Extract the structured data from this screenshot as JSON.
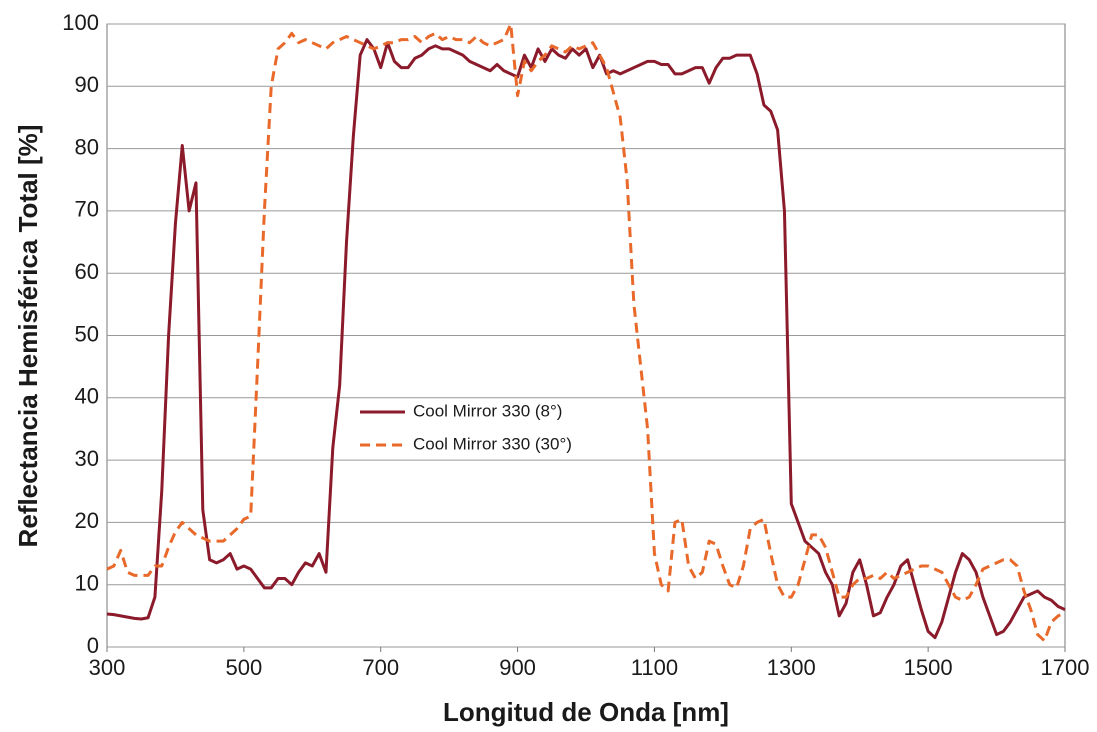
{
  "chart_data": {
    "type": "line",
    "xlabel": "Longitud de Onda [nm]",
    "ylabel": "Reflectancia Hemisférica Total [%]",
    "x": [
      300,
      310,
      320,
      330,
      340,
      350,
      360,
      370,
      380,
      390,
      400,
      410,
      420,
      430,
      440,
      450,
      460,
      470,
      480,
      490,
      500,
      510,
      520,
      530,
      540,
      550,
      560,
      570,
      580,
      590,
      600,
      610,
      620,
      630,
      640,
      650,
      660,
      670,
      680,
      690,
      700,
      710,
      720,
      730,
      740,
      750,
      760,
      770,
      780,
      790,
      800,
      810,
      820,
      830,
      840,
      850,
      860,
      870,
      880,
      890,
      900,
      910,
      920,
      930,
      940,
      950,
      960,
      970,
      980,
      990,
      1000,
      1010,
      1020,
      1030,
      1040,
      1050,
      1060,
      1070,
      1080,
      1090,
      1100,
      1110,
      1120,
      1130,
      1140,
      1150,
      1160,
      1170,
      1180,
      1190,
      1200,
      1210,
      1220,
      1230,
      1240,
      1250,
      1260,
      1270,
      1280,
      1290,
      1300,
      1310,
      1320,
      1330,
      1340,
      1350,
      1360,
      1370,
      1380,
      1390,
      1400,
      1410,
      1420,
      1430,
      1440,
      1450,
      1460,
      1470,
      1480,
      1490,
      1500,
      1510,
      1520,
      1530,
      1540,
      1550,
      1560,
      1570,
      1580,
      1590,
      1600,
      1610,
      1620,
      1630,
      1640,
      1650,
      1660,
      1670,
      1680,
      1690,
      1700
    ],
    "series": [
      {
        "name": "Cool Mirror 330 (8°)",
        "color": "#8b1a2b",
        "dash": false,
        "values": [
          5.3,
          5.2,
          5.0,
          4.8,
          4.6,
          4.5,
          4.7,
          8,
          25,
          50,
          68,
          80.5,
          70,
          74.5,
          22,
          14,
          13.5,
          14,
          15,
          12.5,
          13,
          12.5,
          11,
          9.5,
          9.5,
          11,
          11,
          10,
          12,
          13.5,
          13,
          15,
          12,
          32,
          42,
          65,
          82,
          95,
          97.5,
          96,
          93,
          97,
          94,
          93,
          93,
          94.5,
          95,
          96,
          96.5,
          96,
          96,
          95.5,
          95,
          94,
          93.5,
          93,
          92.5,
          93.5,
          92.5,
          92,
          91.5,
          95,
          93,
          96,
          94,
          96,
          95,
          94.5,
          96,
          95,
          96,
          93,
          95,
          92,
          92.5,
          92,
          92.5,
          93,
          93.5,
          94,
          94,
          93.5,
          93.5,
          92,
          92,
          92.5,
          93,
          93,
          90.5,
          93,
          94.5,
          94.5,
          95,
          95,
          95,
          92,
          87,
          86,
          83,
          70,
          23,
          20,
          17,
          16,
          15,
          12,
          10,
          5,
          7,
          12,
          14,
          10,
          5,
          5.5,
          8,
          10,
          13,
          14,
          10,
          6,
          2.5,
          1.5,
          4,
          8,
          12,
          15,
          14,
          12,
          8,
          5,
          2,
          2.5,
          4,
          6,
          8,
          8.5,
          9,
          8,
          7.5,
          6.5,
          6
        ]
      },
      {
        "name": "Cool Mirror 330 (30°)",
        "color": "#e8692a",
        "dash": true,
        "values": [
          12.5,
          13,
          15.5,
          12,
          11.5,
          11.5,
          11.5,
          13,
          13,
          16,
          18.5,
          20,
          19,
          18,
          17.5,
          17,
          17,
          17,
          18,
          19,
          20.5,
          21,
          45,
          70,
          90,
          96,
          97,
          98.5,
          97,
          97.5,
          97,
          96.5,
          96,
          97,
          97.5,
          98,
          97.5,
          97,
          96.5,
          96,
          96.5,
          97,
          97,
          97.5,
          97.5,
          98,
          97,
          98,
          98.5,
          97.5,
          98,
          97.5,
          97.5,
          97,
          98,
          97,
          96.5,
          97,
          97.5,
          100,
          88.5,
          94,
          92.5,
          94,
          95,
          96.5,
          96,
          95.5,
          96.5,
          96,
          96.5,
          97,
          95,
          93,
          89,
          85,
          75,
          55,
          45,
          35,
          15,
          10,
          9,
          20,
          20.5,
          13,
          11,
          12,
          17,
          16.5,
          13,
          10,
          9.5,
          13,
          19,
          20,
          20.5,
          15,
          10,
          8,
          8,
          10,
          14,
          18,
          18,
          16,
          12,
          8,
          8,
          10,
          11,
          11,
          11.5,
          11,
          12,
          11,
          11.5,
          12,
          12.5,
          13,
          13,
          12.5,
          12,
          10,
          8,
          7.5,
          8,
          10,
          12.5,
          13,
          13.5,
          14,
          14,
          13,
          9,
          6,
          2,
          1,
          4,
          5,
          5.5
        ]
      }
    ],
    "xlim": [
      300,
      1700
    ],
    "ylim": [
      0,
      100
    ],
    "xticks": [
      300,
      500,
      700,
      900,
      1100,
      1300,
      1500,
      1700
    ],
    "yticks": [
      0,
      10,
      20,
      30,
      40,
      50,
      60,
      70,
      80,
      90,
      100
    ],
    "grid": true
  }
}
